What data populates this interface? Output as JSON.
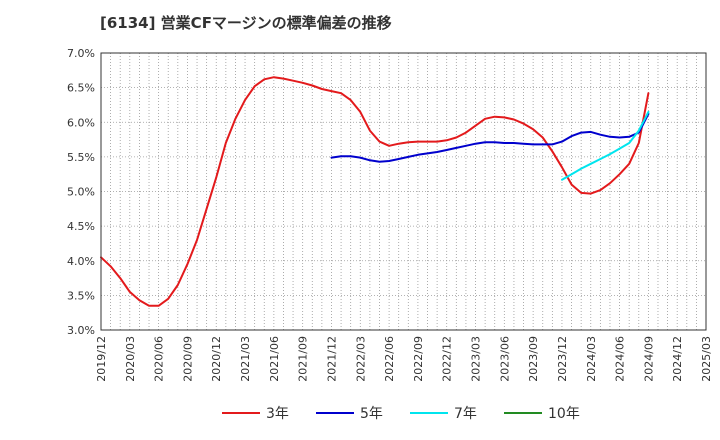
{
  "chart_data": {
    "type": "line",
    "title": "[6134]  営業CFマージンの標準偏差の推移",
    "xlabel": "",
    "ylabel": "",
    "ylim": [
      3.0,
      7.0
    ],
    "y_ticks": [
      3.0,
      3.5,
      4.0,
      4.5,
      5.0,
      5.5,
      6.0,
      6.5,
      7.0
    ],
    "y_tick_labels": [
      "3.0%",
      "3.5%",
      "4.0%",
      "4.5%",
      "5.0%",
      "5.5%",
      "6.0%",
      "6.5%",
      "7.0%"
    ],
    "x_start": "2019/12",
    "x_end": "2025/03",
    "x_tick_labels": [
      "2019/12",
      "2020/03",
      "2020/06",
      "2020/09",
      "2020/12",
      "2021/03",
      "2021/06",
      "2021/09",
      "2021/12",
      "2022/03",
      "2022/06",
      "2022/09",
      "2022/12",
      "2023/03",
      "2023/06",
      "2023/09",
      "2023/12",
      "2024/03",
      "2024/06",
      "2024/09",
      "2024/12",
      "2025/03"
    ],
    "grid": true,
    "legend_position": "bottom",
    "series": [
      {
        "name": "3年",
        "color": "#e31a1c",
        "points": [
          [
            "2019/12",
            4.05
          ],
          [
            "2020/01",
            3.92
          ],
          [
            "2020/02",
            3.75
          ],
          [
            "2020/03",
            3.55
          ],
          [
            "2020/04",
            3.43
          ],
          [
            "2020/05",
            3.35
          ],
          [
            "2020/06",
            3.35
          ],
          [
            "2020/07",
            3.45
          ],
          [
            "2020/08",
            3.65
          ],
          [
            "2020/09",
            3.95
          ],
          [
            "2020/10",
            4.3
          ],
          [
            "2020/11",
            4.75
          ],
          [
            "2020/12",
            5.2
          ],
          [
            "2021/01",
            5.7
          ],
          [
            "2021/02",
            6.05
          ],
          [
            "2021/03",
            6.32
          ],
          [
            "2021/04",
            6.52
          ],
          [
            "2021/05",
            6.62
          ],
          [
            "2021/06",
            6.65
          ],
          [
            "2021/07",
            6.63
          ],
          [
            "2021/08",
            6.6
          ],
          [
            "2021/09",
            6.57
          ],
          [
            "2021/10",
            6.53
          ],
          [
            "2021/11",
            6.48
          ],
          [
            "2021/12",
            6.45
          ],
          [
            "2022/01",
            6.42
          ],
          [
            "2022/02",
            6.32
          ],
          [
            "2022/03",
            6.15
          ],
          [
            "2022/04",
            5.88
          ],
          [
            "2022/05",
            5.72
          ],
          [
            "2022/06",
            5.66
          ],
          [
            "2022/07",
            5.69
          ],
          [
            "2022/08",
            5.71
          ],
          [
            "2022/09",
            5.72
          ],
          [
            "2022/10",
            5.72
          ],
          [
            "2022/11",
            5.72
          ],
          [
            "2022/12",
            5.74
          ],
          [
            "2023/01",
            5.78
          ],
          [
            "2023/02",
            5.85
          ],
          [
            "2023/03",
            5.95
          ],
          [
            "2023/04",
            6.05
          ],
          [
            "2023/05",
            6.08
          ],
          [
            "2023/06",
            6.07
          ],
          [
            "2023/07",
            6.04
          ],
          [
            "2023/08",
            5.98
          ],
          [
            "2023/09",
            5.9
          ],
          [
            "2023/10",
            5.78
          ],
          [
            "2023/11",
            5.58
          ],
          [
            "2023/12",
            5.35
          ],
          [
            "2024/01",
            5.1
          ],
          [
            "2024/02",
            4.98
          ],
          [
            "2024/03",
            4.97
          ],
          [
            "2024/04",
            5.02
          ],
          [
            "2024/05",
            5.12
          ],
          [
            "2024/06",
            5.25
          ],
          [
            "2024/07",
            5.4
          ],
          [
            "2024/08",
            5.7
          ],
          [
            "2024/09",
            6.42
          ]
        ]
      },
      {
        "name": "5年",
        "color": "#0000cd",
        "points": [
          [
            "2021/12",
            5.49
          ],
          [
            "2022/01",
            5.51
          ],
          [
            "2022/02",
            5.51
          ],
          [
            "2022/03",
            5.49
          ],
          [
            "2022/04",
            5.45
          ],
          [
            "2022/05",
            5.43
          ],
          [
            "2022/06",
            5.44
          ],
          [
            "2022/07",
            5.47
          ],
          [
            "2022/08",
            5.5
          ],
          [
            "2022/09",
            5.53
          ],
          [
            "2022/10",
            5.55
          ],
          [
            "2022/11",
            5.57
          ],
          [
            "2022/12",
            5.6
          ],
          [
            "2023/01",
            5.63
          ],
          [
            "2023/02",
            5.66
          ],
          [
            "2023/03",
            5.69
          ],
          [
            "2023/04",
            5.71
          ],
          [
            "2023/05",
            5.71
          ],
          [
            "2023/06",
            5.7
          ],
          [
            "2023/07",
            5.7
          ],
          [
            "2023/08",
            5.69
          ],
          [
            "2023/09",
            5.68
          ],
          [
            "2023/10",
            5.68
          ],
          [
            "2023/11",
            5.68
          ],
          [
            "2023/12",
            5.72
          ],
          [
            "2024/01",
            5.8
          ],
          [
            "2024/02",
            5.85
          ],
          [
            "2024/03",
            5.86
          ],
          [
            "2024/04",
            5.82
          ],
          [
            "2024/05",
            5.79
          ],
          [
            "2024/06",
            5.78
          ],
          [
            "2024/07",
            5.79
          ],
          [
            "2024/08",
            5.85
          ],
          [
            "2024/09",
            6.12
          ]
        ]
      },
      {
        "name": "7年",
        "color": "#00e5ee",
        "points": [
          [
            "2023/12",
            5.17
          ],
          [
            "2024/01",
            5.25
          ],
          [
            "2024/02",
            5.33
          ],
          [
            "2024/03",
            5.4
          ],
          [
            "2024/04",
            5.47
          ],
          [
            "2024/05",
            5.54
          ],
          [
            "2024/06",
            5.62
          ],
          [
            "2024/07",
            5.7
          ],
          [
            "2024/08",
            5.88
          ],
          [
            "2024/09",
            6.15
          ]
        ]
      },
      {
        "name": "10年",
        "color": "#228b22",
        "points": []
      }
    ]
  }
}
